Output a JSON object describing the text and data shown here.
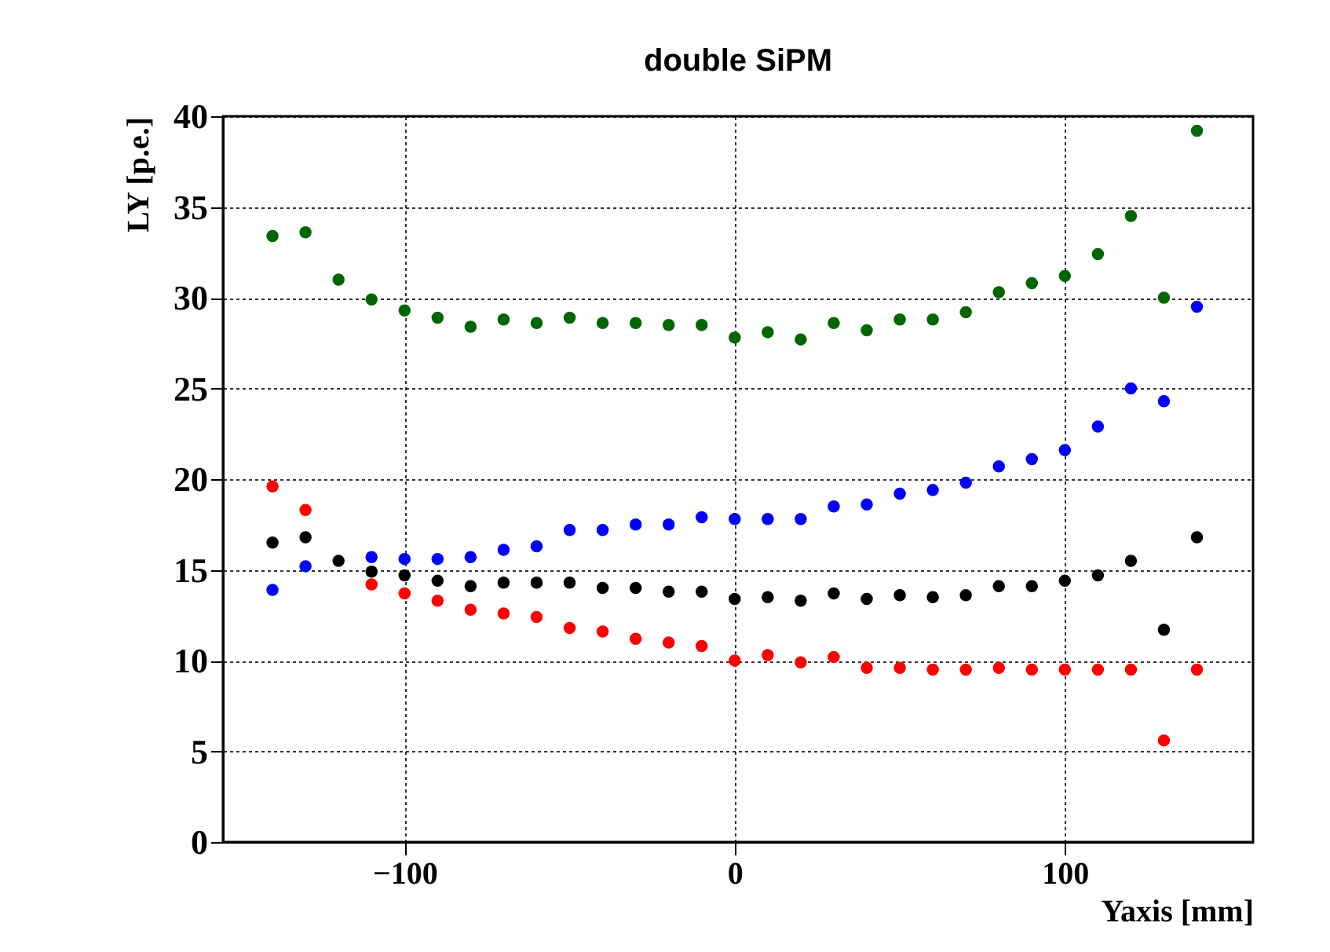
{
  "chart_data": {
    "type": "scatter",
    "title": "double SiPM",
    "xlabel": "Yaxis [mm]",
    "ylabel": "LY [p.e.]",
    "x": [
      -140,
      -130,
      -120,
      -110,
      -100,
      -90,
      -80,
      -70,
      -60,
      -50,
      -40,
      -30,
      -20,
      -10,
      0,
      10,
      20,
      30,
      40,
      50,
      60,
      70,
      80,
      90,
      100,
      110,
      120,
      130,
      140
    ],
    "series": [
      {
        "color": "#006600",
        "values": [
          33.4,
          33.6,
          31.0,
          29.9,
          29.3,
          28.9,
          28.4,
          28.8,
          28.6,
          28.9,
          28.6,
          28.6,
          28.5,
          28.5,
          27.8,
          28.1,
          27.7,
          28.6,
          28.2,
          28.8,
          28.8,
          29.2,
          30.3,
          30.8,
          31.2,
          32.4,
          34.5,
          30.0,
          39.2
        ]
      },
      {
        "color": "#0000ff",
        "values": [
          13.9,
          15.2,
          null,
          15.7,
          15.6,
          15.6,
          15.7,
          16.1,
          16.3,
          17.2,
          17.2,
          17.5,
          17.5,
          17.9,
          17.8,
          17.8,
          17.8,
          18.5,
          18.6,
          19.2,
          19.4,
          19.8,
          20.7,
          21.1,
          21.6,
          22.9,
          25.0,
          24.3,
          29.5
        ]
      },
      {
        "color": "#000000",
        "values": [
          16.5,
          16.8,
          15.5,
          14.9,
          14.7,
          14.4,
          14.1,
          14.3,
          14.3,
          14.3,
          14.0,
          14.0,
          13.8,
          13.8,
          13.4,
          13.5,
          13.3,
          13.7,
          13.4,
          13.6,
          13.5,
          13.6,
          14.1,
          14.1,
          14.4,
          14.7,
          15.5,
          11.7,
          16.8
        ]
      },
      {
        "color": "#ff0000",
        "values": [
          19.6,
          18.3,
          null,
          14.2,
          13.7,
          13.3,
          12.8,
          12.6,
          12.4,
          11.8,
          11.6,
          11.2,
          11.0,
          10.8,
          10.0,
          10.3,
          9.9,
          10.2,
          9.6,
          9.6,
          9.5,
          9.5,
          9.6,
          9.5,
          9.5,
          9.5,
          9.5,
          5.6,
          9.5
        ]
      }
    ],
    "xlim": [
      -155,
      157
    ],
    "xticks": [
      -100,
      0,
      100
    ],
    "ylim": [
      0,
      40
    ],
    "yticks": [
      0,
      5,
      10,
      15,
      20,
      25,
      30,
      35,
      40
    ],
    "grid": true,
    "marker": "circle"
  }
}
